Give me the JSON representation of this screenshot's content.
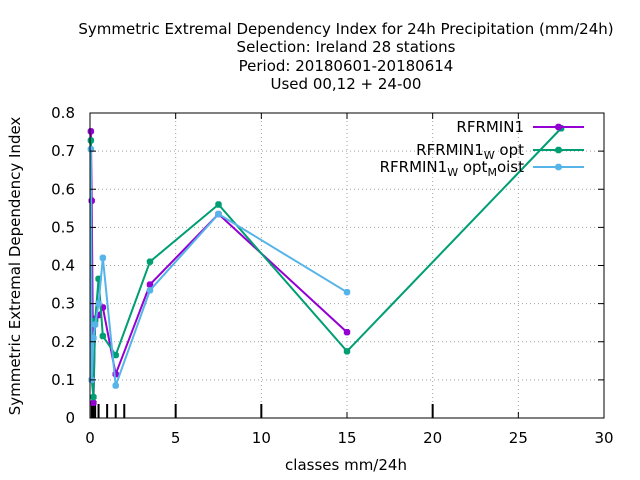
{
  "title_lines": [
    "Symmetric Extremal Dependency Index  for 24h Precipitation (mm/24h)",
    "Selection: Ireland     28 stations",
    "Period: 20180601-20180614",
    "Used  00,12  + 24-00"
  ],
  "chart_data": {
    "type": "line",
    "xlabel": "classes mm/24h",
    "ylabel": "Symmetric Extremal Dependency Index",
    "xlim": [
      0,
      30
    ],
    "ylim": [
      0,
      0.8
    ],
    "x_ticks": [
      0,
      5,
      10,
      15,
      20,
      25,
      30
    ],
    "y_ticks": [
      0,
      0.1,
      0.2,
      0.3,
      0.4,
      0.5,
      0.6,
      0.7,
      0.8
    ],
    "x_tick_labels": [
      "0",
      "5",
      "10",
      "15",
      "20",
      "25",
      "30"
    ],
    "y_tick_labels": [
      "0",
      "0.1",
      "0.2",
      "0.3",
      "0.4",
      "0.5",
      "0.6",
      "0.7",
      "0.8"
    ],
    "grid": true,
    "legend_position": "top-right",
    "class_markers": [
      0.1,
      0.2,
      0.3,
      0.5,
      1,
      1.5,
      2,
      5,
      10,
      20
    ],
    "series": [
      {
        "name": "RFRMIN1",
        "legend_parts": [
          {
            "text": "RFRMIN1",
            "sub": false
          }
        ],
        "color": "#9400d3",
        "x": [
          0.05,
          0.1,
          0.2,
          0.3,
          0.5,
          0.75,
          1.5,
          3.5,
          7.5,
          15
        ],
        "y": [
          0.752,
          0.57,
          0.04,
          0.26,
          0.27,
          0.29,
          0.115,
          0.35,
          0.535,
          0.225
        ]
      },
      {
        "name": "RFRMIN1_W opt",
        "legend_parts": [
          {
            "text": "RFRMIN1",
            "sub": false
          },
          {
            "text": "W",
            "sub": true
          },
          {
            "text": " opt",
            "sub": false
          }
        ],
        "color": "#009e73",
        "x": [
          0.05,
          0.1,
          0.2,
          0.3,
          0.5,
          0.75,
          1.5,
          3.5,
          7.5,
          15,
          27.5
        ],
        "y": [
          0.728,
          0.1,
          0.055,
          0.255,
          0.365,
          0.215,
          0.165,
          0.41,
          0.56,
          0.175,
          0.76
        ]
      },
      {
        "name": "RFRMIN1_W opt_M oist",
        "legend_parts": [
          {
            "text": "RFRMIN1",
            "sub": false
          },
          {
            "text": "W",
            "sub": true
          },
          {
            "text": " opt",
            "sub": false
          },
          {
            "text": "M",
            "sub": true
          },
          {
            "text": "oist",
            "sub": false
          }
        ],
        "color": "#56b4e9",
        "x": [
          0.05,
          0.1,
          0.2,
          0.3,
          0.5,
          0.75,
          1.5,
          3.5,
          7.5,
          15
        ],
        "y": [
          0.705,
          0.1,
          0.21,
          0.245,
          0.3,
          0.42,
          0.085,
          0.335,
          0.535,
          0.33
        ]
      }
    ]
  }
}
